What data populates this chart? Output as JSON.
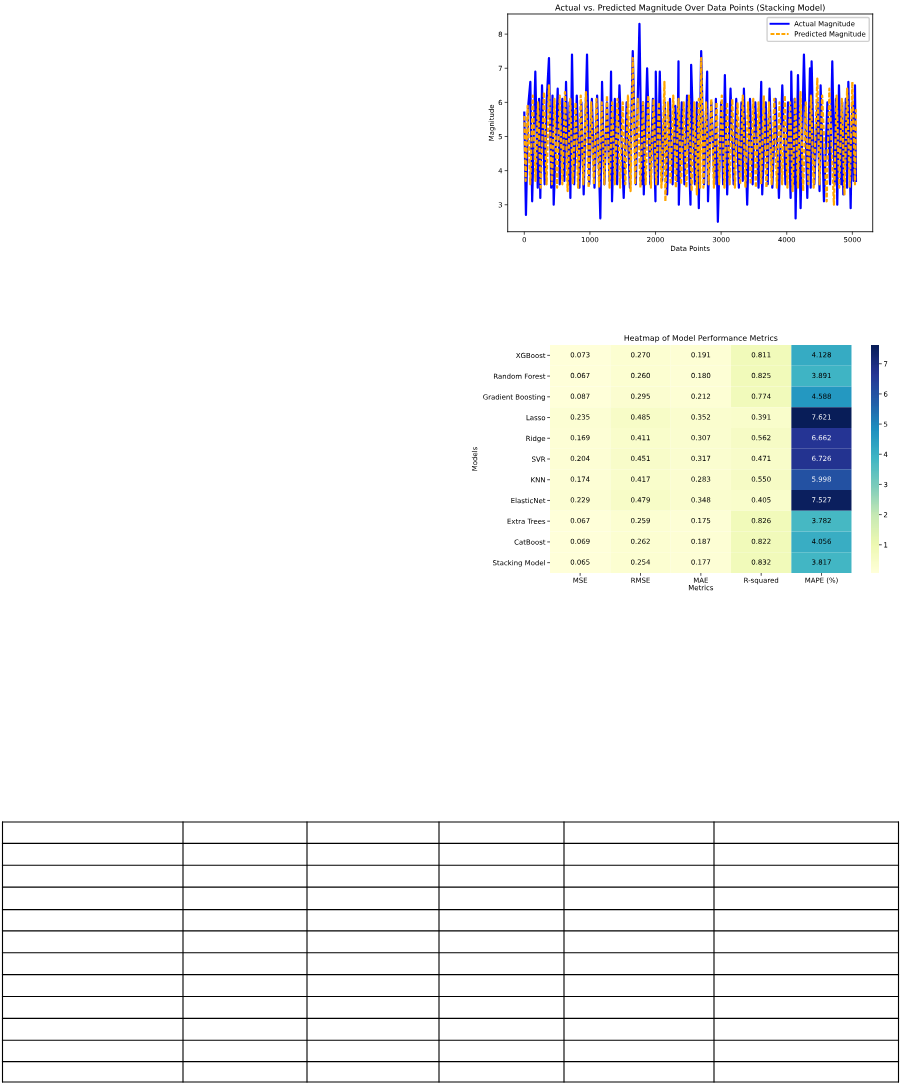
{
  "chart_data": [
    {
      "type": "line",
      "title": "Actual vs. Predicted Magnitude Over Data Points (Stacking Model)",
      "xlabel": "Data Points",
      "ylabel": "Magnitude",
      "xlim": [
        -253,
        5310
      ],
      "ylim": [
        2.21,
        8.59
      ],
      "xticks": [
        0,
        1000,
        2000,
        3000,
        4000,
        5000
      ],
      "yticks": [
        3,
        4,
        5,
        6,
        7,
        8
      ],
      "legend": "top right",
      "series": [
        {
          "name": "Actual Magnitude",
          "color": "#0000ff",
          "line_style": "solid",
          "x": [
            0,
            25,
            60,
            92,
            120,
            168,
            205,
            225,
            244,
            270,
            310,
            340,
            376,
            410,
            430,
            448,
            509,
            540,
            580,
            610,
            636,
            670,
            690,
            702,
            727,
            760,
            800,
            840,
            870,
            905,
            956,
            990,
            1030,
            1070,
            1110,
            1159,
            1185,
            1220,
            1260,
            1300,
            1322,
            1337,
            1380,
            1415,
            1450,
            1515,
            1560,
            1610,
            1653,
            1700,
            1755,
            1790,
            1810,
            1821,
            1872,
            1920,
            1960,
            1999,
            2004,
            2035,
            2065,
            2100,
            2140,
            2177,
            2220,
            2260,
            2300,
            2330,
            2350,
            2355,
            2400,
            2440,
            2480,
            2533,
            2543,
            2600,
            2630,
            2660,
            2696,
            2740,
            2787,
            2800,
            2850,
            2900,
            2920,
            2950,
            3000,
            3030,
            3057,
            3092,
            3143,
            3190,
            3230,
            3270,
            3310,
            3330,
            3347,
            3397,
            3440,
            3480,
            3520,
            3570,
            3611,
            3626,
            3680,
            3710,
            3738,
            3780,
            3830,
            3881,
            3932,
            3980,
            4020,
            4059,
            4069,
            4100,
            4120,
            4135,
            4171,
            4211,
            4262,
            4313,
            4354,
            4365,
            4379,
            4420,
            4470,
            4500,
            4516,
            4567,
            4620,
            4660,
            4694,
            4730,
            4750,
            4770,
            4796,
            4830,
            4845,
            4862,
            4900,
            4920,
            4939,
            4974,
            5000,
            5020,
            5040,
            5055
          ],
          "values": [
            5.7,
            2.7,
            5.9,
            6.6,
            3.1,
            6.9,
            3.5,
            6.1,
            3.2,
            6.5,
            3.6,
            6.0,
            7.3,
            3.5,
            6.2,
            3.0,
            6.4,
            3.6,
            6.1,
            3.7,
            6.6,
            3.6,
            6.0,
            3.2,
            7.4,
            3.6,
            6.2,
            3.5,
            6.0,
            3.3,
            7.4,
            3.6,
            6.1,
            3.5,
            6.2,
            2.6,
            6.6,
            3.6,
            6.0,
            3.7,
            6.9,
            3.1,
            6.1,
            3.6,
            6.5,
            3.2,
            6.0,
            3.5,
            7.5,
            3.6,
            8.3,
            3.6,
            6.0,
            3.3,
            7.0,
            3.6,
            6.1,
            3.1,
            6.9,
            3.6,
            6.9,
            3.7,
            6.0,
            3.3,
            6.1,
            3.6,
            5.9,
            3.7,
            7.2,
            3.0,
            6.0,
            3.6,
            6.2,
            3.0,
            7.1,
            3.6,
            6.0,
            2.9,
            7.5,
            3.6,
            6.9,
            3.1,
            6.0,
            3.6,
            6.1,
            2.5,
            6.0,
            3.6,
            6.8,
            3.3,
            6.4,
            3.6,
            6.1,
            3.5,
            6.0,
            3.7,
            6.4,
            3.0,
            6.1,
            3.6,
            6.0,
            3.5,
            6.6,
            3.3,
            6.0,
            3.6,
            6.4,
            3.5,
            6.1,
            3.2,
            6.5,
            3.6,
            6.0,
            3.2,
            6.9,
            3.6,
            6.1,
            2.6,
            6.8,
            2.9,
            7.4,
            3.2,
            7.0,
            3.5,
            7.2,
            3.6,
            6.0,
            3.4,
            6.5,
            3.1,
            6.0,
            3.6,
            7.2,
            3.6,
            6.1,
            3.0,
            6.5,
            3.6,
            6.0,
            3.3,
            6.1,
            3.5,
            6.6,
            2.9,
            6.0,
            3.7,
            6.5,
            3.7
          ]
        },
        {
          "name": "Predicted Magnitude",
          "color": "#ffa500",
          "line_style": "dashed",
          "x": [
            0,
            20,
            50,
            90,
            130,
            170,
            210,
            250,
            300,
            340,
            376,
            420,
            460,
            500,
            540,
            580,
            620,
            660,
            700,
            740,
            780,
            820,
            860,
            900,
            940,
            980,
            1020,
            1060,
            1100,
            1140,
            1180,
            1220,
            1260,
            1300,
            1340,
            1380,
            1420,
            1460,
            1500,
            1540,
            1580,
            1620,
            1653,
            1690,
            1730,
            1770,
            1810,
            1850,
            1890,
            1930,
            1970,
            2010,
            2050,
            2090,
            2136,
            2150,
            2190,
            2230,
            2270,
            2310,
            2350,
            2390,
            2430,
            2470,
            2510,
            2550,
            2590,
            2630,
            2660,
            2680,
            2696,
            2730,
            2770,
            2810,
            2850,
            2890,
            2930,
            2970,
            3010,
            3050,
            3090,
            3130,
            3170,
            3210,
            3250,
            3290,
            3330,
            3370,
            3410,
            3450,
            3490,
            3530,
            3570,
            3610,
            3650,
            3690,
            3730,
            3770,
            3810,
            3850,
            3890,
            3930,
            3970,
            4010,
            4050,
            4090,
            4130,
            4170,
            4210,
            4250,
            4290,
            4330,
            4370,
            4410,
            4466,
            4500,
            4540,
            4608,
            4650,
            4719,
            4760,
            4800,
            4840,
            4880,
            4920,
            4960,
            5000,
            5040,
            5055
          ],
          "values": [
            5.6,
            3.7,
            5.9,
            3.6,
            6.2,
            3.7,
            6.0,
            3.5,
            6.3,
            3.6,
            6.5,
            3.6,
            6.1,
            3.5,
            6.2,
            3.6,
            6.3,
            3.4,
            6.1,
            3.6,
            6.0,
            3.5,
            6.2,
            3.6,
            6.3,
            3.5,
            6.0,
            3.6,
            6.1,
            3.5,
            6.0,
            3.6,
            6.2,
            3.5,
            6.0,
            3.6,
            6.1,
            3.5,
            6.0,
            3.6,
            6.2,
            3.4,
            7.3,
            3.6,
            6.1,
            3.5,
            6.0,
            3.6,
            6.2,
            3.5,
            6.1,
            3.6,
            6.0,
            3.5,
            6.6,
            3.1,
            6.0,
            3.6,
            6.2,
            3.5,
            6.1,
            3.6,
            6.0,
            3.5,
            6.2,
            3.4,
            6.0,
            3.3,
            6.1,
            3.5,
            7.3,
            3.5,
            6.0,
            3.6,
            6.1,
            3.5,
            6.0,
            3.6,
            6.2,
            3.5,
            6.0,
            3.6,
            6.1,
            3.5,
            6.0,
            3.6,
            6.2,
            3.5,
            6.0,
            3.6,
            6.1,
            3.5,
            6.0,
            3.6,
            6.2,
            3.5,
            6.0,
            3.6,
            6.1,
            3.5,
            6.0,
            3.6,
            6.2,
            3.5,
            6.0,
            3.4,
            6.1,
            3.5,
            6.3,
            3.4,
            6.0,
            3.6,
            6.2,
            3.5,
            6.7,
            3.6,
            6.2,
            3.1,
            6.4,
            3.0,
            6.2,
            3.5,
            6.1,
            3.3,
            6.4,
            3.5,
            6.6,
            3.6,
            5.8
          ]
        }
      ]
    },
    {
      "type": "heatmap",
      "title": "Heatmap of Model Performance Metrics",
      "xlabel": "Metrics",
      "ylabel": "Models",
      "categories": [
        "MSE",
        "RMSE",
        "MAE",
        "R-squared",
        "MAPE (%)"
      ],
      "y_categories": [
        "XGBoost",
        "Random Forest",
        "Gradient Boosting",
        "Lasso",
        "Ridge",
        "SVR",
        "KNN",
        "ElasticNet",
        "Extra Trees",
        "CatBoost",
        "Stacking Model"
      ],
      "cells": [
        [
          0.073,
          0.27,
          0.191,
          0.811,
          4.128
        ],
        [
          0.067,
          0.26,
          0.18,
          0.825,
          3.891
        ],
        [
          0.087,
          0.295,
          0.212,
          0.774,
          4.588
        ],
        [
          0.235,
          0.485,
          0.352,
          0.391,
          7.621
        ],
        [
          0.169,
          0.411,
          0.307,
          0.562,
          6.662
        ],
        [
          0.204,
          0.451,
          0.317,
          0.471,
          6.726
        ],
        [
          0.174,
          0.417,
          0.283,
          0.55,
          5.998
        ],
        [
          0.229,
          0.479,
          0.348,
          0.405,
          7.527
        ],
        [
          0.067,
          0.259,
          0.175,
          0.826,
          3.782
        ],
        [
          0.069,
          0.262,
          0.187,
          0.822,
          4.056
        ],
        [
          0.065,
          0.254,
          0.177,
          0.832,
          3.817
        ]
      ],
      "cell_labels": [
        [
          "0.073",
          "0.270",
          "0.191",
          "0.811",
          "4.128"
        ],
        [
          "0.067",
          "0.260",
          "0.180",
          "0.825",
          "3.891"
        ],
        [
          "0.087",
          "0.295",
          "0.212",
          "0.774",
          "4.588"
        ],
        [
          "0.235",
          "0.485",
          "0.352",
          "0.391",
          "7.621"
        ],
        [
          "0.169",
          "0.411",
          "0.307",
          "0.562",
          "6.662"
        ],
        [
          "0.204",
          "0.451",
          "0.317",
          "0.471",
          "6.726"
        ],
        [
          "0.174",
          "0.417",
          "0.283",
          "0.550",
          "5.998"
        ],
        [
          "0.229",
          "0.479",
          "0.348",
          "0.405",
          "7.527"
        ],
        [
          "0.067",
          "0.259",
          "0.175",
          "0.826",
          "3.782"
        ],
        [
          "0.069",
          "0.262",
          "0.187",
          "0.822",
          "4.056"
        ],
        [
          "0.065",
          "0.254",
          "0.177",
          "0.832",
          "3.817"
        ]
      ],
      "clim": [
        0.065,
        7.621
      ],
      "cticks": [
        1,
        2,
        3,
        4,
        5,
        6,
        7
      ]
    }
  ]
}
